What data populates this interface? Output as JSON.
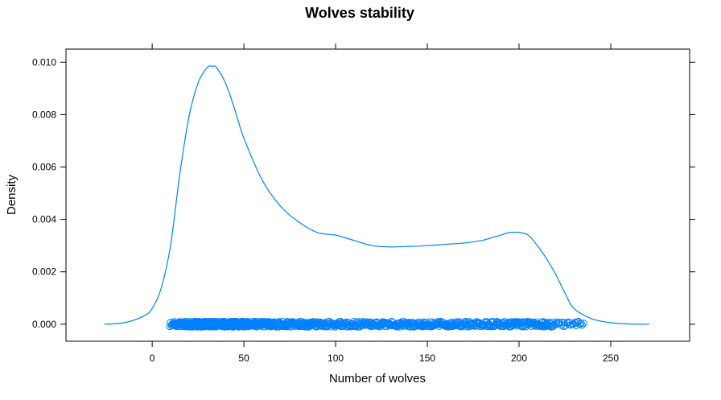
{
  "chart_data": {
    "type": "density",
    "title": "Wolves stability",
    "xlabel": "Number of wolves",
    "ylabel": "Density",
    "xlim": [
      -47,
      293
    ],
    "ylim": [
      -0.00065,
      0.0105
    ],
    "x_ticks": [
      0,
      50,
      100,
      150,
      200,
      250
    ],
    "x_tick_labels": [
      "0",
      "50",
      "100",
      "150",
      "200",
      "250"
    ],
    "y_ticks": [
      0.0,
      0.002,
      0.004,
      0.006,
      0.008,
      0.01
    ],
    "y_tick_labels": [
      "0.000",
      "0.002",
      "0.004",
      "0.006",
      "0.008",
      "0.010"
    ],
    "grid": false,
    "colors": {
      "series": "#0080ff",
      "axis": "#000000"
    },
    "density_curve": {
      "x": [
        -26,
        -15,
        -5,
        0,
        5,
        10,
        15,
        20,
        25,
        30,
        33,
        35,
        40,
        45,
        50,
        60,
        70,
        80,
        90,
        100,
        110,
        120,
        130,
        140,
        150,
        160,
        170,
        180,
        185,
        190,
        195,
        200,
        205,
        210,
        215,
        220,
        225,
        230,
        240,
        250,
        260,
        271
      ],
      "y": [
        0.0,
        6e-05,
        0.0003,
        0.0006,
        0.0014,
        0.003,
        0.0057,
        0.0079,
        0.0092,
        0.0098,
        0.00984,
        0.0098,
        0.0092,
        0.0082,
        0.0071,
        0.0055,
        0.0045,
        0.0039,
        0.0035,
        0.0034,
        0.0032,
        0.003,
        0.00295,
        0.00297,
        0.003,
        0.00305,
        0.0031,
        0.0032,
        0.0033,
        0.0034,
        0.0035,
        0.0035,
        0.0034,
        0.003,
        0.0025,
        0.0019,
        0.0012,
        0.0006,
        0.0002,
        6e-05,
        1e-05,
        0.0
      ]
    },
    "rug": {
      "range": [
        10,
        235
      ],
      "y": 0.0
    }
  }
}
